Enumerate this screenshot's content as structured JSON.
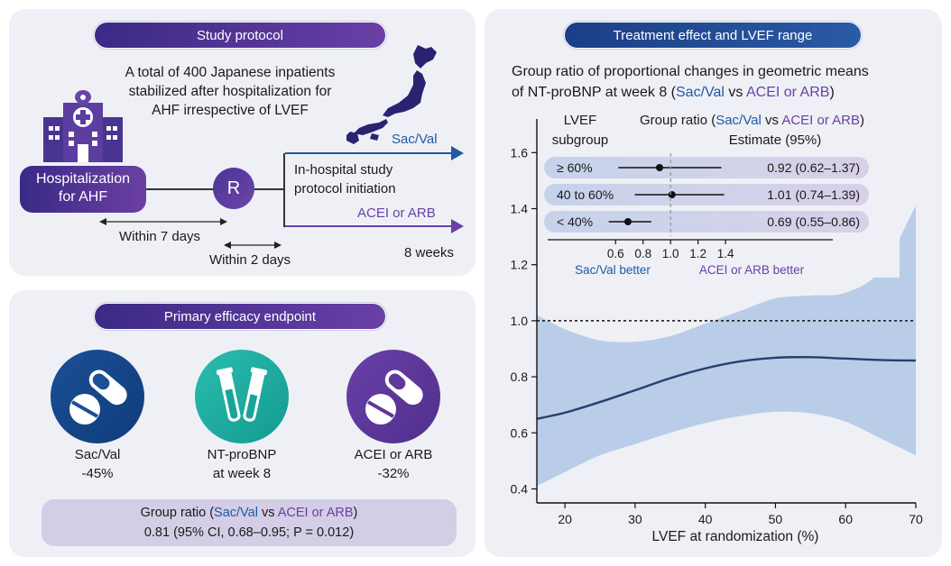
{
  "protocol": {
    "title": "Study protocol",
    "description_lines": [
      "A total of 400 Japanese inpatients",
      "stabilized after hospitalization for",
      "AHF irrespective of LVEF"
    ],
    "hosp_box_lines": [
      "Hospitalization",
      "for AHF"
    ],
    "randomize_label": "R",
    "within_7_days": "Within 7 days",
    "within_2_days": "Within 2 days",
    "initiation_lines": [
      "In-hospital study",
      "protocol initiation"
    ],
    "arm_sac": "Sac/Val",
    "arm_acei": "ACEI or ARB",
    "duration": "8 weeks"
  },
  "efficacy": {
    "title": "Primary efficacy endpoint",
    "left_label": "Sac/Val",
    "left_value": "-45%",
    "middle_label": "NT-proBNP",
    "middle_sub": "at week 8",
    "right_label": "ACEI or ARB",
    "right_value": "-32%",
    "ratio_prefix": "Group ratio (",
    "ratio_sac": "Sac/Val",
    "ratio_vs": " vs ",
    "ratio_acei": "ACEI or ARB",
    "ratio_suffix": ")",
    "ratio_line2": "0.81 (95% CI, 0.68–0.95; P = 0.012)"
  },
  "treatment": {
    "title": "Treatment effect and LVEF range",
    "heading_line1": "Group ratio of proportional changes in geometric means",
    "heading_line2_prefix": "of NT-proBNP at week 8 (",
    "heading_sac": "Sac/Val",
    "heading_vs": " vs ",
    "heading_acei": "ACEI or ARB",
    "heading_suffix": ")"
  },
  "colors": {
    "sac": "#1e5aa0",
    "acei": "#6a3fa6",
    "band": "#b9cde8",
    "curve": "#24406e"
  },
  "chart_data": {
    "type": "line",
    "xlabel": "LVEF at randomization (%)",
    "ylabel": "",
    "xlim": [
      16,
      70
    ],
    "ylim": [
      0.35,
      1.72
    ],
    "x_ticks": [
      20,
      30,
      40,
      50,
      60,
      70
    ],
    "y_ticks": [
      0.4,
      0.6,
      0.8,
      1.0,
      1.2,
      1.4,
      1.6
    ],
    "y_tick_labels": [
      "0.4",
      "0.6",
      "0.8",
      "1.0",
      "1.2",
      "1.4",
      "1.6"
    ],
    "reference_line": 1.0,
    "x": [
      16,
      20,
      25,
      30,
      35,
      40,
      45,
      50,
      55,
      60,
      65,
      70
    ],
    "estimate": [
      0.65,
      0.672,
      0.71,
      0.752,
      0.795,
      0.83,
      0.855,
      0.868,
      0.87,
      0.865,
      0.86,
      0.858
    ],
    "lower": [
      0.41,
      0.46,
      0.52,
      0.56,
      0.6,
      0.635,
      0.66,
      0.675,
      0.67,
      0.64,
      0.58,
      0.52
    ],
    "upper": [
      1.02,
      0.97,
      0.93,
      0.925,
      0.945,
      0.99,
      1.035,
      1.08,
      1.09,
      1.1,
      1.18,
      1.41
    ],
    "grid": false,
    "inset_forest": {
      "col_header_1": [
        "LVEF",
        "subgroup"
      ],
      "col_header_2_prefix": "Group ratio (",
      "col_header_2_sac": "Sac/Val",
      "col_header_2_vs": " vs ",
      "col_header_2_acei": "ACEI or ARB",
      "col_header_2_suffix": ")",
      "col_header_3": "Estimate (95%)",
      "x_ticks": [
        0.6,
        0.8,
        1.0,
        1.2,
        1.4
      ],
      "x_tick_labels": [
        "0.6",
        "0.8",
        "1.0",
        "1.2",
        "1.4"
      ],
      "xlim": [
        0.5,
        1.55
      ],
      "ref": 1.0,
      "left_note": "Sac/Val better",
      "right_note": "ACEI or ARB better",
      "rows": [
        {
          "label": "≥ 60%",
          "estimate": 0.92,
          "lo": 0.62,
          "hi": 1.37,
          "text": "0.92 (0.62–1.37)"
        },
        {
          "label": "40 to 60%",
          "estimate": 1.01,
          "lo": 0.74,
          "hi": 1.39,
          "text": "1.01 (0.74–1.39)"
        },
        {
          "label": "< 40%",
          "estimate": 0.69,
          "lo": 0.55,
          "hi": 0.86,
          "text": "0.69 (0.55–0.86)"
        }
      ]
    }
  }
}
